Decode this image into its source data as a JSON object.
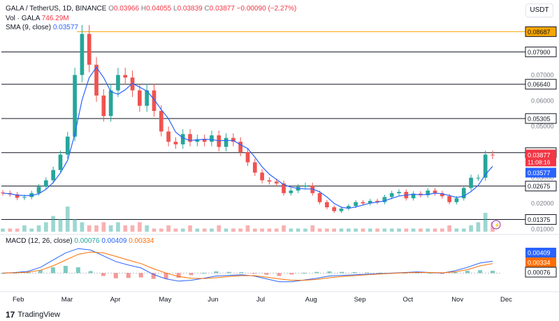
{
  "header": {
    "symbol": "GALA / TetherUS, 1D, BINANCE",
    "o_label": "O",
    "o_value": "0.03966",
    "h_label": "H",
    "h_value": "0.04055",
    "l_label": "L",
    "l_value": "0.03839",
    "c_label": "C",
    "c_value": "0.03877",
    "change": "−0.00090 (−2.27%)",
    "vol_label": "Vol · GALA",
    "vol_value": "746.29M",
    "sma_label": "SMA (9, close)",
    "sma_value": "0.03577",
    "currency": "USDT"
  },
  "macd_legend": {
    "label": "MACD (12, 26, close)",
    "hist": "0.00076",
    "macd": "0.00409",
    "signal": "0.00334"
  },
  "footer": {
    "brand": "TradingView",
    "logo_text": "17"
  },
  "colors": {
    "up": "#26a69a",
    "down": "#ef5350",
    "sma": "#2962ff",
    "macd": "#2962ff",
    "signal": "#ff6d00",
    "level_line": "#131722",
    "top_level_line": "#f7a600",
    "price_badge": "#f23645"
  },
  "chart_data": [
    {
      "type": "candlestick",
      "title": "GALA / TetherUS, 1D, BINANCE",
      "x_ticks": [
        "Feb",
        "Mar",
        "Apr",
        "May",
        "Jun",
        "Jul",
        "Aug",
        "Sep",
        "Oct",
        "Nov",
        "Dec"
      ],
      "y_ticks": [
        "0.07000",
        "0.06000",
        "0.05000",
        "0.03000",
        "0.02000",
        "0.01000"
      ],
      "ylim": [
        0.009,
        0.0905
      ],
      "levels": [
        "0.08687",
        "0.07900",
        "0.06640",
        "0.05305",
        "0.03975",
        "0.02675",
        "0.01375"
      ],
      "last_price": "0.03877",
      "countdown": "11:08:16",
      "sma_last": "0.03577",
      "series_close": [
        0.024,
        0.0235,
        0.0222,
        0.0225,
        0.024,
        0.0265,
        0.029,
        0.033,
        0.039,
        0.046,
        0.07,
        0.086,
        0.074,
        0.062,
        0.054,
        0.064,
        0.07,
        0.069,
        0.064,
        0.058,
        0.064,
        0.056,
        0.048,
        0.044,
        0.043,
        0.047,
        0.044,
        0.045,
        0.044,
        0.0465,
        0.042,
        0.0455,
        0.044,
        0.04,
        0.036,
        0.032,
        0.029,
        0.0285,
        0.0278,
        0.024,
        0.025,
        0.0265,
        0.027,
        0.024,
        0.0205,
        0.0185,
        0.017,
        0.018,
        0.019,
        0.0205,
        0.02,
        0.021,
        0.0205,
        0.0225,
        0.024,
        0.0245,
        0.022,
        0.0238,
        0.0232,
        0.025,
        0.024,
        0.0228,
        0.0205,
        0.022,
        0.026,
        0.03,
        0.03,
        0.039,
        0.0388
      ],
      "volume_pattern": [
        1,
        1,
        1,
        2,
        1,
        2,
        3,
        5,
        4,
        8,
        4,
        3,
        2,
        2,
        3,
        2,
        3,
        2,
        2,
        3,
        2,
        1,
        1,
        2,
        1,
        1,
        2,
        1,
        1,
        1,
        2,
        1,
        1,
        1,
        2,
        1,
        1,
        1,
        1,
        2,
        1,
        1,
        1,
        2,
        1,
        1,
        1,
        1,
        1,
        1,
        1,
        1,
        1,
        1,
        1,
        1,
        1,
        1,
        1,
        1,
        1,
        1,
        2,
        1,
        1,
        2,
        3,
        6,
        3
      ]
    },
    {
      "type": "line",
      "title": "MACD (12, 26, close)",
      "y_ticks": [
        "0.00000"
      ],
      "series": [
        {
          "name": "MACD",
          "last": 0.00409
        },
        {
          "name": "Signal",
          "last": 0.00334
        },
        {
          "name": "Histogram",
          "last": 0.00076
        }
      ],
      "macd_values": [
        0.0,
        0.0002,
        0.0006,
        0.002,
        0.0045,
        0.007,
        0.0085,
        0.008,
        0.006,
        0.004,
        0.0028,
        0.0018,
        -0.0005,
        -0.002,
        -0.0028,
        -0.0025,
        -0.0018,
        -0.001,
        -0.0008,
        -0.0006,
        -0.001,
        -0.002,
        -0.003,
        -0.003,
        -0.0024,
        -0.0018,
        -0.001,
        -0.0008,
        -0.0006,
        -0.0004,
        -0.0002,
        0.0,
        0.0002,
        0.0004,
        0.0002,
        0.0,
        0.0008,
        0.002,
        0.0035,
        0.0041
      ],
      "signal_values": [
        0.0,
        0.0001,
        0.0003,
        0.001,
        0.0025,
        0.0045,
        0.0065,
        0.0073,
        0.007,
        0.0058,
        0.0045,
        0.0033,
        0.0015,
        0.0,
        -0.0012,
        -0.0018,
        -0.0019,
        -0.0016,
        -0.0012,
        -0.0009,
        -0.0009,
        -0.0014,
        -0.002,
        -0.0025,
        -0.0025,
        -0.0022,
        -0.0016,
        -0.0012,
        -0.0009,
        -0.0006,
        -0.0003,
        -0.0001,
        0.0001,
        0.0002,
        0.0002,
        0.0001,
        0.0004,
        0.0012,
        0.0025,
        0.0033
      ]
    }
  ]
}
